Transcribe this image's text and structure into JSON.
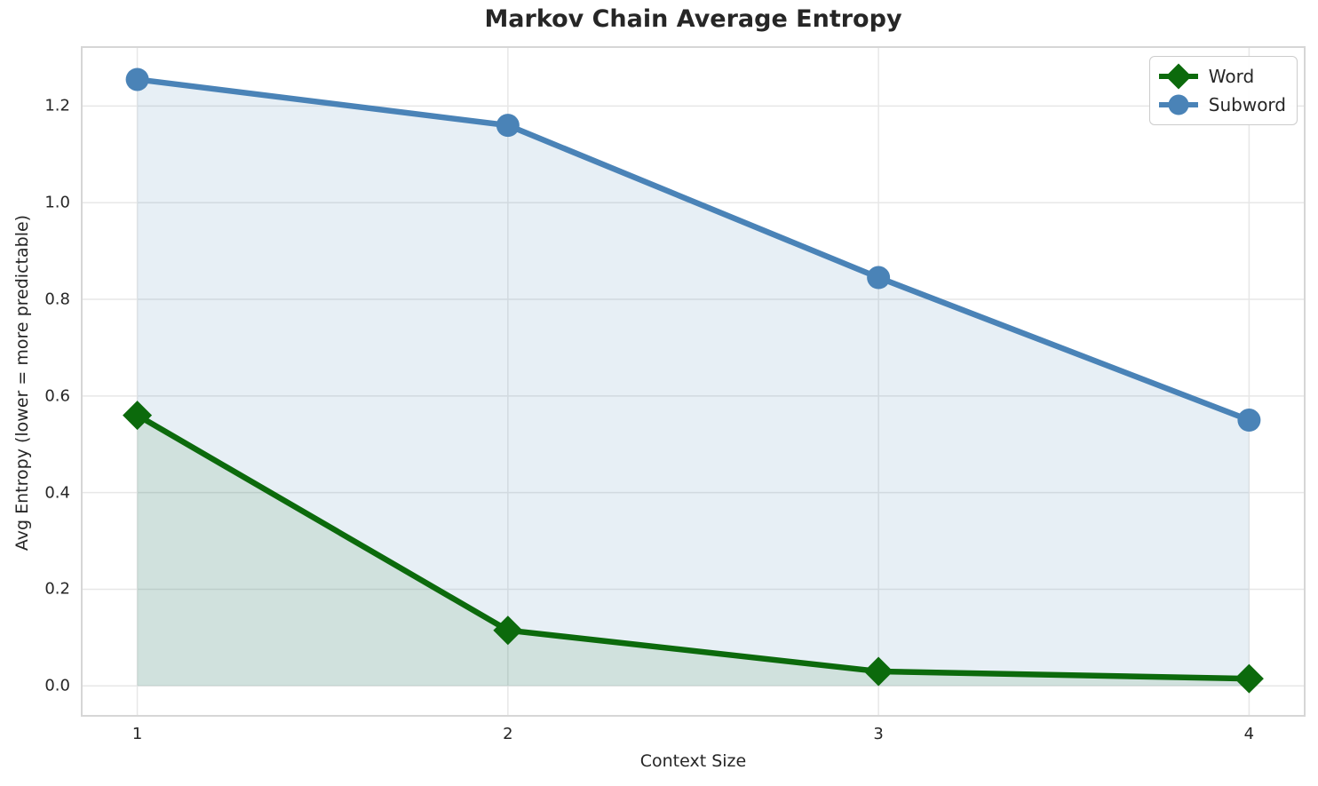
{
  "chart_data": {
    "type": "line",
    "title": "Markov Chain Average Entropy",
    "xlabel": "Context Size",
    "ylabel": "Avg Entropy (lower = more predictable)",
    "x": [
      1,
      2,
      3,
      4
    ],
    "series": [
      {
        "name": "Word",
        "values": [
          0.56,
          0.115,
          0.03,
          0.015
        ],
        "color": "#0c6a0c",
        "fill_color": "rgba(10,105,10,0.10)",
        "marker": "diamond"
      },
      {
        "name": "Subword",
        "values": [
          1.255,
          1.16,
          0.845,
          0.55
        ],
        "color": "#4a83b7",
        "fill_color": "rgba(70,130,180,0.13)",
        "marker": "circle"
      }
    ],
    "xticks": [
      1,
      2,
      3,
      4
    ],
    "yticks": [
      0.0,
      0.2,
      0.4,
      0.6,
      0.8,
      1.0,
      1.2
    ],
    "xlim": [
      0.85,
      4.15
    ],
    "ylim": [
      -0.062,
      1.322
    ],
    "grid": true,
    "legend_position": "upper right",
    "colors": {
      "grid": "#e7e7e7",
      "spine": "#d6d6d6",
      "text": "#262626",
      "background": "#ffffff"
    }
  }
}
